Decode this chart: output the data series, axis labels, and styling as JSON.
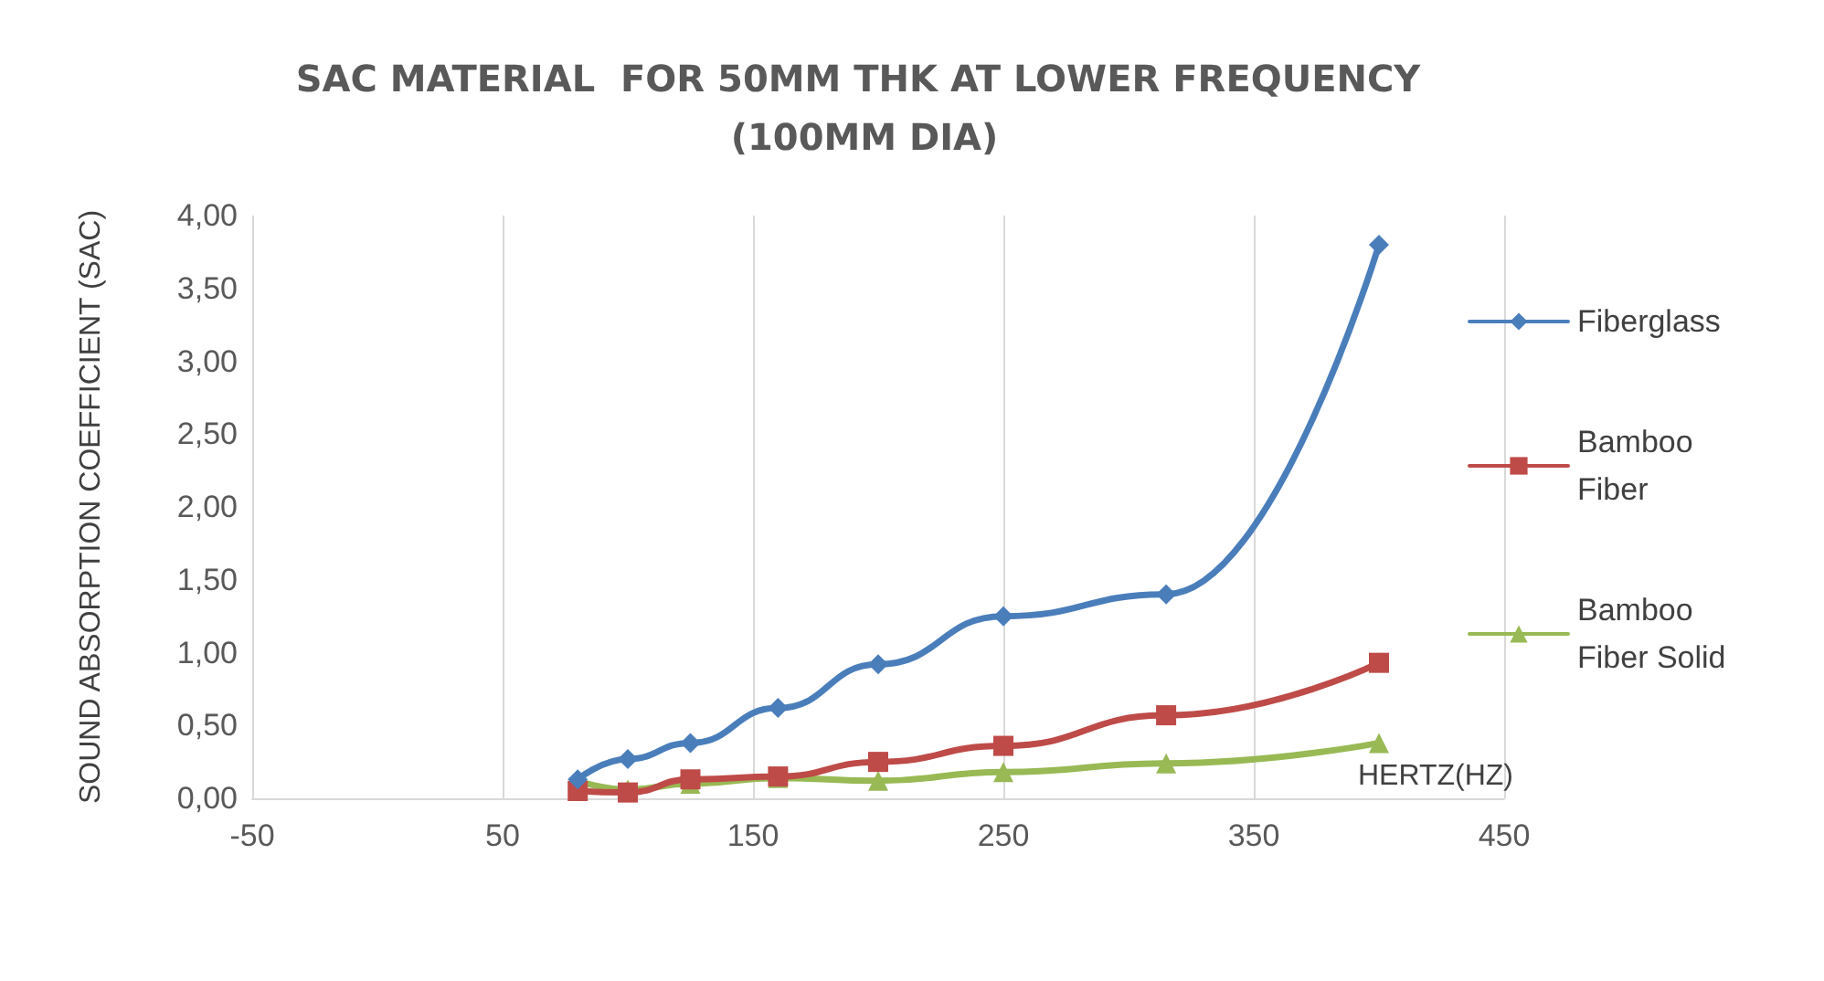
{
  "chart_data": {
    "type": "line",
    "title": "SAC MATERIAL  FOR 50MM THK AT LOWER FREQUENCY (100MM DIA)",
    "xlabel": "HERTZ(HZ)",
    "ylabel": "SOUND ABSORPTION COEFFICIENT (SAC)",
    "x": [
      80,
      100,
      125,
      160,
      200,
      250,
      315,
      400
    ],
    "series": [
      {
        "name": "Fiberglass",
        "color": "#4a7ebb",
        "marker": "diamond",
        "values": [
          0.13,
          0.27,
          0.38,
          0.62,
          0.92,
          1.25,
          1.4,
          3.8
        ]
      },
      {
        "name": "Bamboo Fiber",
        "color": "#be4b48",
        "marker": "square",
        "values": [
          0.05,
          0.04,
          0.13,
          0.15,
          0.25,
          0.36,
          0.57,
          0.93
        ]
      },
      {
        "name": "Bamboo Fiber Solid",
        "color": "#98b954",
        "marker": "triangle",
        "values": [
          0.12,
          0.06,
          0.1,
          0.14,
          0.12,
          0.18,
          0.24,
          0.38
        ]
      }
    ],
    "xlim": [
      -50,
      450
    ],
    "xticks": [
      -50,
      50,
      150,
      250,
      350,
      450
    ],
    "ylim": [
      0,
      4
    ],
    "yticks": [
      {
        "value": 0,
        "label": "0,00"
      },
      {
        "value": 0.5,
        "label": "0,50"
      },
      {
        "value": 1,
        "label": "1,00"
      },
      {
        "value": 1.5,
        "label": "1,50"
      },
      {
        "value": 2,
        "label": "2,00"
      },
      {
        "value": 2.5,
        "label": "2,50"
      },
      {
        "value": 3,
        "label": "3,00"
      },
      {
        "value": 3.5,
        "label": "3,50"
      },
      {
        "value": 4,
        "label": "4,00"
      }
    ],
    "grid": "x",
    "legend": "right"
  }
}
